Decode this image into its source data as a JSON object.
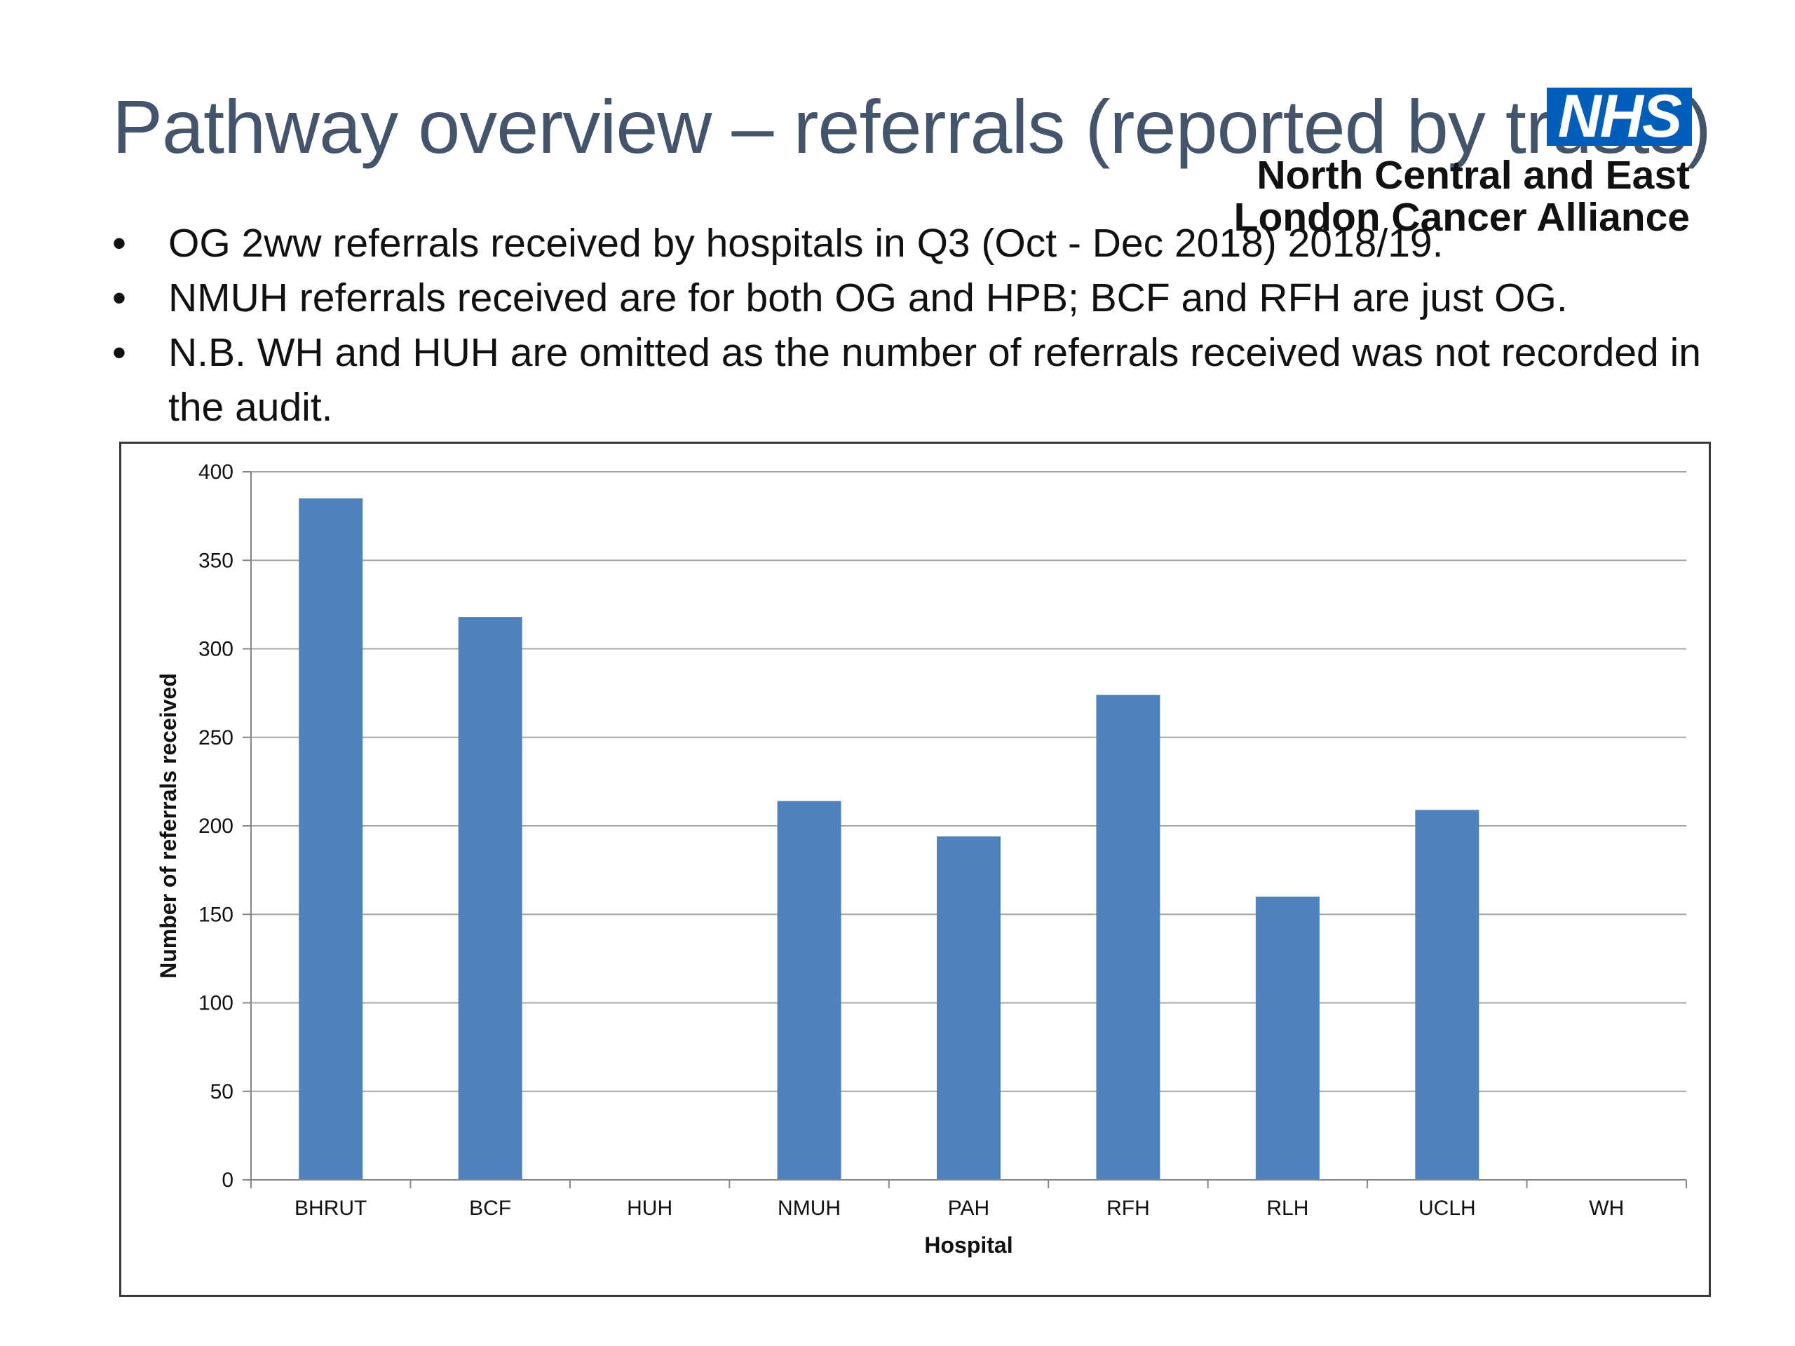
{
  "slide": {
    "title": "Pathway overview – referrals (reported by trusts)",
    "logo": {
      "text": "NHS",
      "color": "#005eb8"
    },
    "org_line1": "North Central and East",
    "org_line2": "London Cancer Alliance",
    "bullets": [
      "OG 2ww referrals received by hospitals in Q3 (Oct - Dec 2018) 2018/19.",
      "NMUH referrals received are for both OG and HPB; BCF and RFH are just OG.",
      "N.B. WH and HUH are omitted as the number of referrals received was not recorded in the audit."
    ]
  },
  "chart_data": {
    "type": "bar",
    "categories": [
      "BHRUT",
      "BCF",
      "HUH",
      "NMUH",
      "PAH",
      "RFH",
      "RLH",
      "UCLH",
      "WH"
    ],
    "values": [
      385,
      318,
      null,
      214,
      194,
      274,
      160,
      209,
      null
    ],
    "xlabel": "Hospital",
    "ylabel": "Number of referrals received",
    "ylim": [
      0,
      400
    ],
    "yticks": [
      0,
      50,
      100,
      150,
      200,
      250,
      300,
      350,
      400
    ],
    "grid": true,
    "bar_color": "#4f81bd",
    "grid_color": "#a6a6a6"
  }
}
